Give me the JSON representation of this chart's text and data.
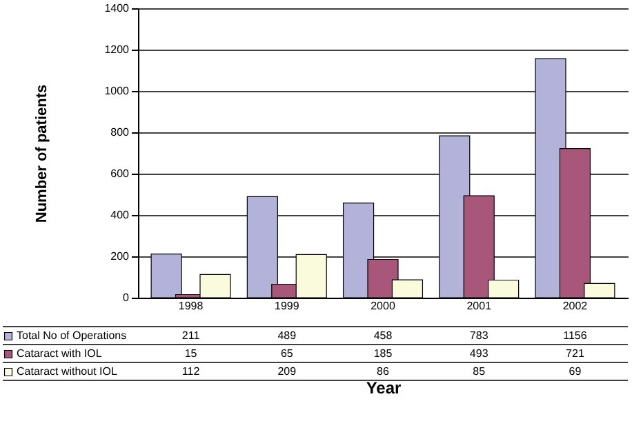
{
  "chart_data": {
    "type": "bar",
    "xlabel": "Year",
    "ylabel": "Number of patients",
    "categories": [
      "1998",
      "1999",
      "2000",
      "2001",
      "2002"
    ],
    "series": [
      {
        "name": "Total No of Operations",
        "color": "#b3b3d9",
        "values": [
          211,
          489,
          458,
          783,
          1156
        ]
      },
      {
        "name": "Cataract with IOL",
        "color": "#a8577a",
        "values": [
          15,
          65,
          185,
          493,
          721
        ]
      },
      {
        "name": "Cataract without IOL",
        "color": "#fafadc",
        "values": [
          112,
          209,
          86,
          85,
          69
        ]
      }
    ],
    "ylim": [
      0,
      1400
    ],
    "yticks": [
      0,
      200,
      400,
      600,
      800,
      1000,
      1200,
      1400
    ],
    "grid": "y",
    "legend": "bottom left",
    "data_labels": true
  }
}
